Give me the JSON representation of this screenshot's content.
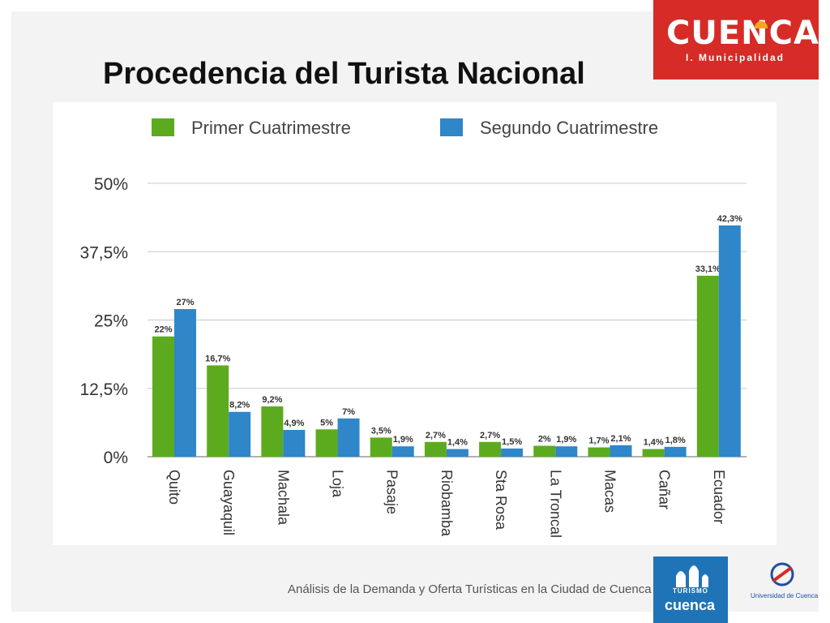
{
  "slide": {
    "title": "Procedencia del Turista Nacional",
    "footer": "Análisis de la Demanda y Oferta Turísticas en la Ciudad de Cuenca"
  },
  "brand": {
    "name": "CUENCA",
    "subtitle": "I. Municipalidad",
    "color": "#d62b26"
  },
  "logos": {
    "turismo_label": "TURISMO",
    "turismo_name": "cuenca",
    "university": "Universidad de Cuenca"
  },
  "chart_data": {
    "type": "bar",
    "title": "",
    "xlabel": "",
    "ylabel": "",
    "ylim": [
      0,
      50
    ],
    "yticks": [
      0,
      12.5,
      25,
      37.5,
      50
    ],
    "ytick_labels": [
      "0%",
      "12,5%",
      "25%",
      "37,5%",
      "50%"
    ],
    "grid": true,
    "legend_position": "top",
    "categories": [
      "Quito",
      "Guayaquil",
      "Machala",
      "Loja",
      "Pasaje",
      "Riobamba",
      "Sta Rosa",
      "La Troncal",
      "Macas",
      "Cañar",
      "Ecuador"
    ],
    "series": [
      {
        "name": "Primer Cuatrimestre",
        "color": "#5cab1e",
        "values": [
          22,
          16.7,
          9.2,
          5,
          3.5,
          2.7,
          2.7,
          2,
          1.7,
          1.4,
          33.1
        ],
        "labels": [
          "22%",
          "16,7%",
          "9,2%",
          "5%",
          "3,5%",
          "2,7%",
          "2,7%",
          "2%",
          "1,7%",
          "1,4%",
          "33,1%"
        ]
      },
      {
        "name": "Segundo Cuatrimestre",
        "color": "#2f86c9",
        "values": [
          27,
          8.2,
          4.9,
          7,
          1.9,
          1.4,
          1.5,
          1.9,
          2.1,
          1.8,
          42.3
        ],
        "labels": [
          "27%",
          "8,2%",
          "4,9%",
          "7%",
          "1,9%",
          "1,4%",
          "1,5%",
          "1,9%",
          "2,1%",
          "1,8%",
          "42,3%"
        ]
      }
    ]
  }
}
